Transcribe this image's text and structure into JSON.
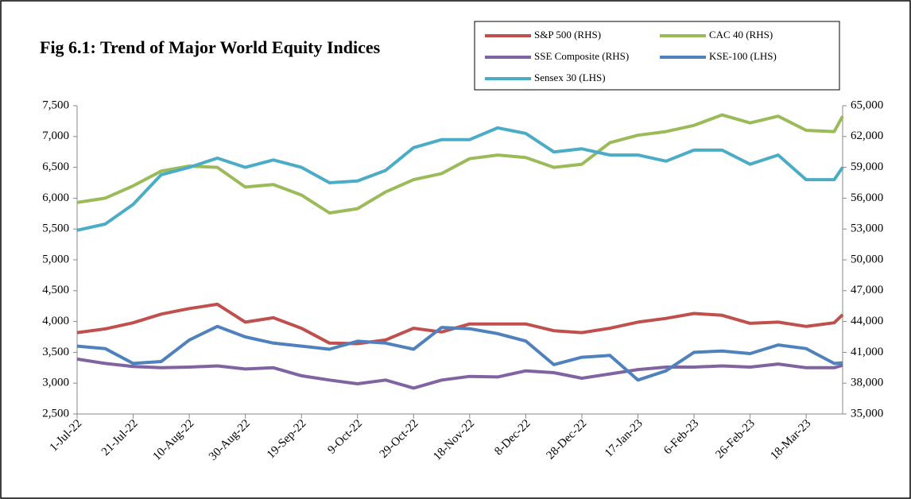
{
  "chart_data": {
    "type": "line",
    "title": "Fig 6.1: Trend of Major World Equity Indices",
    "x": [
      "2022-07-01",
      "2022-07-11",
      "2022-07-21",
      "2022-07-31",
      "2022-08-10",
      "2022-08-20",
      "2022-08-30",
      "2022-09-09",
      "2022-09-19",
      "2022-09-29",
      "2022-10-09",
      "2022-10-19",
      "2022-10-29",
      "2022-11-08",
      "2022-11-18",
      "2022-11-28",
      "2022-12-08",
      "2022-12-18",
      "2022-12-28",
      "2023-01-07",
      "2023-01-17",
      "2023-01-27",
      "2023-02-06",
      "2023-02-16",
      "2023-02-26",
      "2023-03-08",
      "2023-03-18",
      "2023-03-28",
      "2023-03-31"
    ],
    "series": [
      {
        "name": "S&P 500 (RHS)",
        "color": "#c0504d",
        "values": [
          3820,
          3880,
          3980,
          4120,
          4210,
          4280,
          3990,
          4060,
          3890,
          3650,
          3640,
          3700,
          3890,
          3830,
          3960,
          3960,
          3960,
          3850,
          3820,
          3890,
          3990,
          4050,
          4130,
          4100,
          3970,
          3990,
          3920,
          3980,
          4110
        ]
      },
      {
        "name": "CAC 40 (RHS)",
        "color": "#9bbb59",
        "values": [
          5930,
          6000,
          6200,
          6440,
          6520,
          6500,
          6180,
          6220,
          6050,
          5760,
          5830,
          6100,
          6300,
          6400,
          6640,
          6700,
          6660,
          6500,
          6550,
          6900,
          7020,
          7080,
          7180,
          7350,
          7220,
          7330,
          7100,
          7080,
          7330
        ]
      },
      {
        "name": "SSE Composite (RHS)",
        "color": "#8064a2",
        "values": [
          3390,
          3320,
          3270,
          3250,
          3260,
          3280,
          3230,
          3250,
          3120,
          3050,
          2990,
          3050,
          2920,
          3050,
          3110,
          3100,
          3200,
          3170,
          3080,
          3150,
          3220,
          3260,
          3260,
          3280,
          3260,
          3310,
          3250,
          3250,
          3290
        ]
      },
      {
        "name": "KSE-100 (LHS)",
        "color": "#4f81bd",
        "axis": "y2",
        "values": [
          41600,
          41360,
          39920,
          40100,
          42200,
          43520,
          42500,
          41900,
          41600,
          41300,
          42080,
          41900,
          41300,
          43420,
          43300,
          42820,
          42100,
          39800,
          40520,
          40700,
          38300,
          39200,
          41000,
          41120,
          40880,
          41720,
          41360,
          39920,
          39980
        ]
      },
      {
        "name": "Sensex 30 (LHS)",
        "color": "#4bacc6",
        "axis": "y2",
        "values": [
          52880,
          53480,
          55400,
          58280,
          59000,
          59900,
          59000,
          59720,
          59000,
          57500,
          57680,
          58700,
          60920,
          61700,
          61700,
          62840,
          62300,
          60500,
          60800,
          60200,
          60200,
          59600,
          60680,
          60680,
          59300,
          60200,
          57800,
          57800,
          59000
        ]
      }
    ],
    "xlim": [
      "2022-07-01",
      "2023-03-31"
    ],
    "xticks": [
      {
        "value": "2022-07-01",
        "label": "1-Jul-22"
      },
      {
        "value": "2022-07-21",
        "label": "21-Jul-22"
      },
      {
        "value": "2022-08-10",
        "label": "10-Aug-22"
      },
      {
        "value": "2022-08-30",
        "label": "30-Aug-22"
      },
      {
        "value": "2022-09-19",
        "label": "19-Sep-22"
      },
      {
        "value": "2022-10-09",
        "label": "9-Oct-22"
      },
      {
        "value": "2022-10-29",
        "label": "29-Oct-22"
      },
      {
        "value": "2022-11-18",
        "label": "18-Nov-22"
      },
      {
        "value": "2022-12-08",
        "label": "8-Dec-22"
      },
      {
        "value": "2022-12-28",
        "label": "28-Dec-22"
      },
      {
        "value": "2023-01-17",
        "label": "17-Jan-23"
      },
      {
        "value": "2023-02-06",
        "label": "6-Feb-23"
      },
      {
        "value": "2023-02-26",
        "label": "26-Feb-23"
      },
      {
        "value": "2023-03-18",
        "label": "18-Mar-23"
      }
    ],
    "ylim": [
      2500,
      7500
    ],
    "yticks": [
      {
        "value": 2500,
        "label": "2,500"
      },
      {
        "value": 3000,
        "label": "3,000"
      },
      {
        "value": 3500,
        "label": "3,500"
      },
      {
        "value": 4000,
        "label": "4,000"
      },
      {
        "value": 4500,
        "label": "4,500"
      },
      {
        "value": 5000,
        "label": "5,000"
      },
      {
        "value": 5500,
        "label": "5,500"
      },
      {
        "value": 6000,
        "label": "6,000"
      },
      {
        "value": 6500,
        "label": "6,500"
      },
      {
        "value": 7000,
        "label": "7,000"
      },
      {
        "value": 7500,
        "label": "7,500"
      }
    ],
    "y2lim": [
      35000,
      65000
    ],
    "y2ticks": [
      {
        "value": 35000,
        "label": "35,000"
      },
      {
        "value": 38000,
        "label": "38,000"
      },
      {
        "value": 41000,
        "label": "41,000"
      },
      {
        "value": 44000,
        "label": "44,000"
      },
      {
        "value": 47000,
        "label": "47,000"
      },
      {
        "value": 50000,
        "label": "50,000"
      },
      {
        "value": 53000,
        "label": "53,000"
      },
      {
        "value": 56000,
        "label": "56,000"
      },
      {
        "value": 59000,
        "label": "59,000"
      },
      {
        "value": 62000,
        "label": "62,000"
      },
      {
        "value": 65000,
        "label": "65,000"
      }
    ],
    "grid": false
  }
}
